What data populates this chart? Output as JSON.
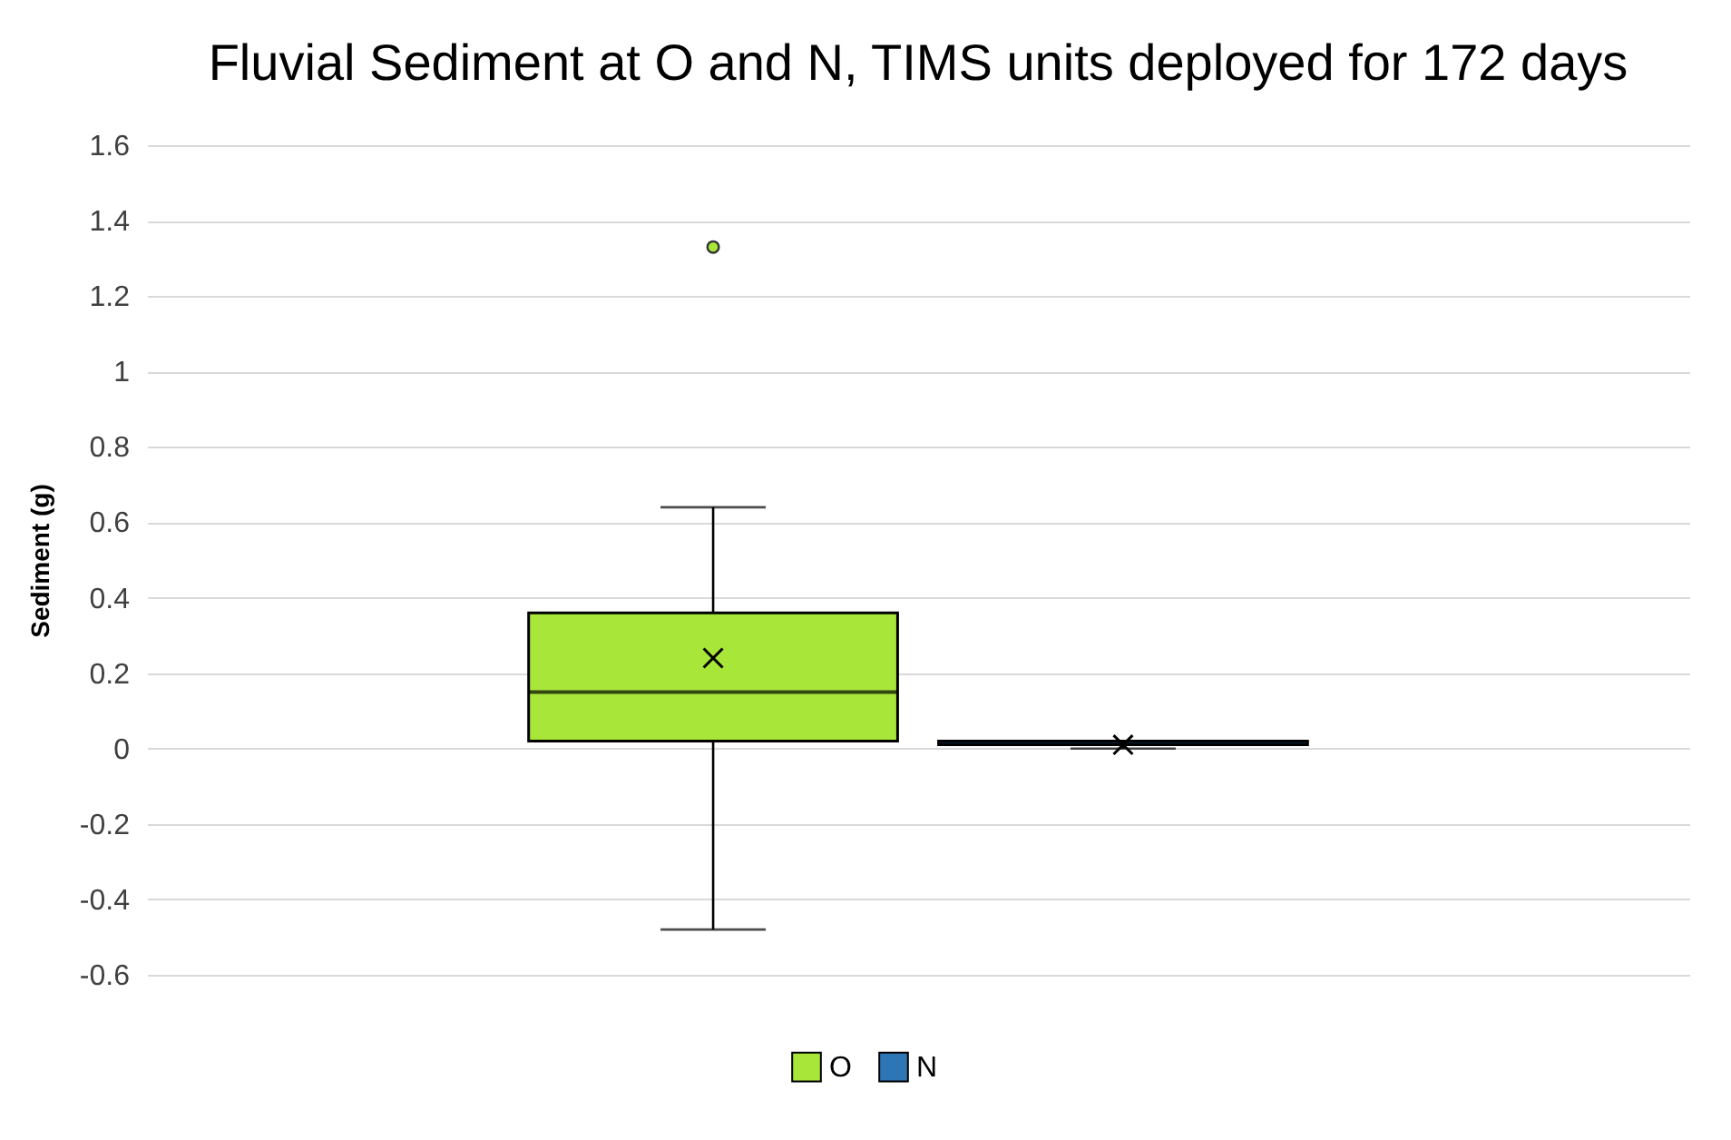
{
  "chart_data": {
    "type": "box",
    "title": "Fluvial Sediment at O and N, TIMS units deployed for 172 days",
    "ylabel": "Sediment (g)",
    "categories": [
      null
    ],
    "series": [
      {
        "name": "O",
        "color": "#a9e63a",
        "boxes": [
          {
            "low": -0.48,
            "q1": 0.02,
            "median": 0.15,
            "q3": 0.36,
            "high": 0.64,
            "mean": 0.24,
            "outliers": [
              1.33
            ]
          }
        ]
      },
      {
        "name": "N",
        "color": "#2e75b6",
        "boxes": [
          {
            "low": 0,
            "q1": 0.01,
            "median": 0.015,
            "q3": 0.02,
            "high": 0.02,
            "mean": 0.01
          }
        ]
      }
    ],
    "ylim": [
      -0.6,
      1.6
    ],
    "yticks": [
      -0.6,
      -0.4,
      -0.2,
      0,
      0.2,
      0.4,
      0.6,
      0.8,
      1,
      1.2,
      1.4,
      1.6
    ],
    "grid": "y",
    "legend": "bottom"
  }
}
